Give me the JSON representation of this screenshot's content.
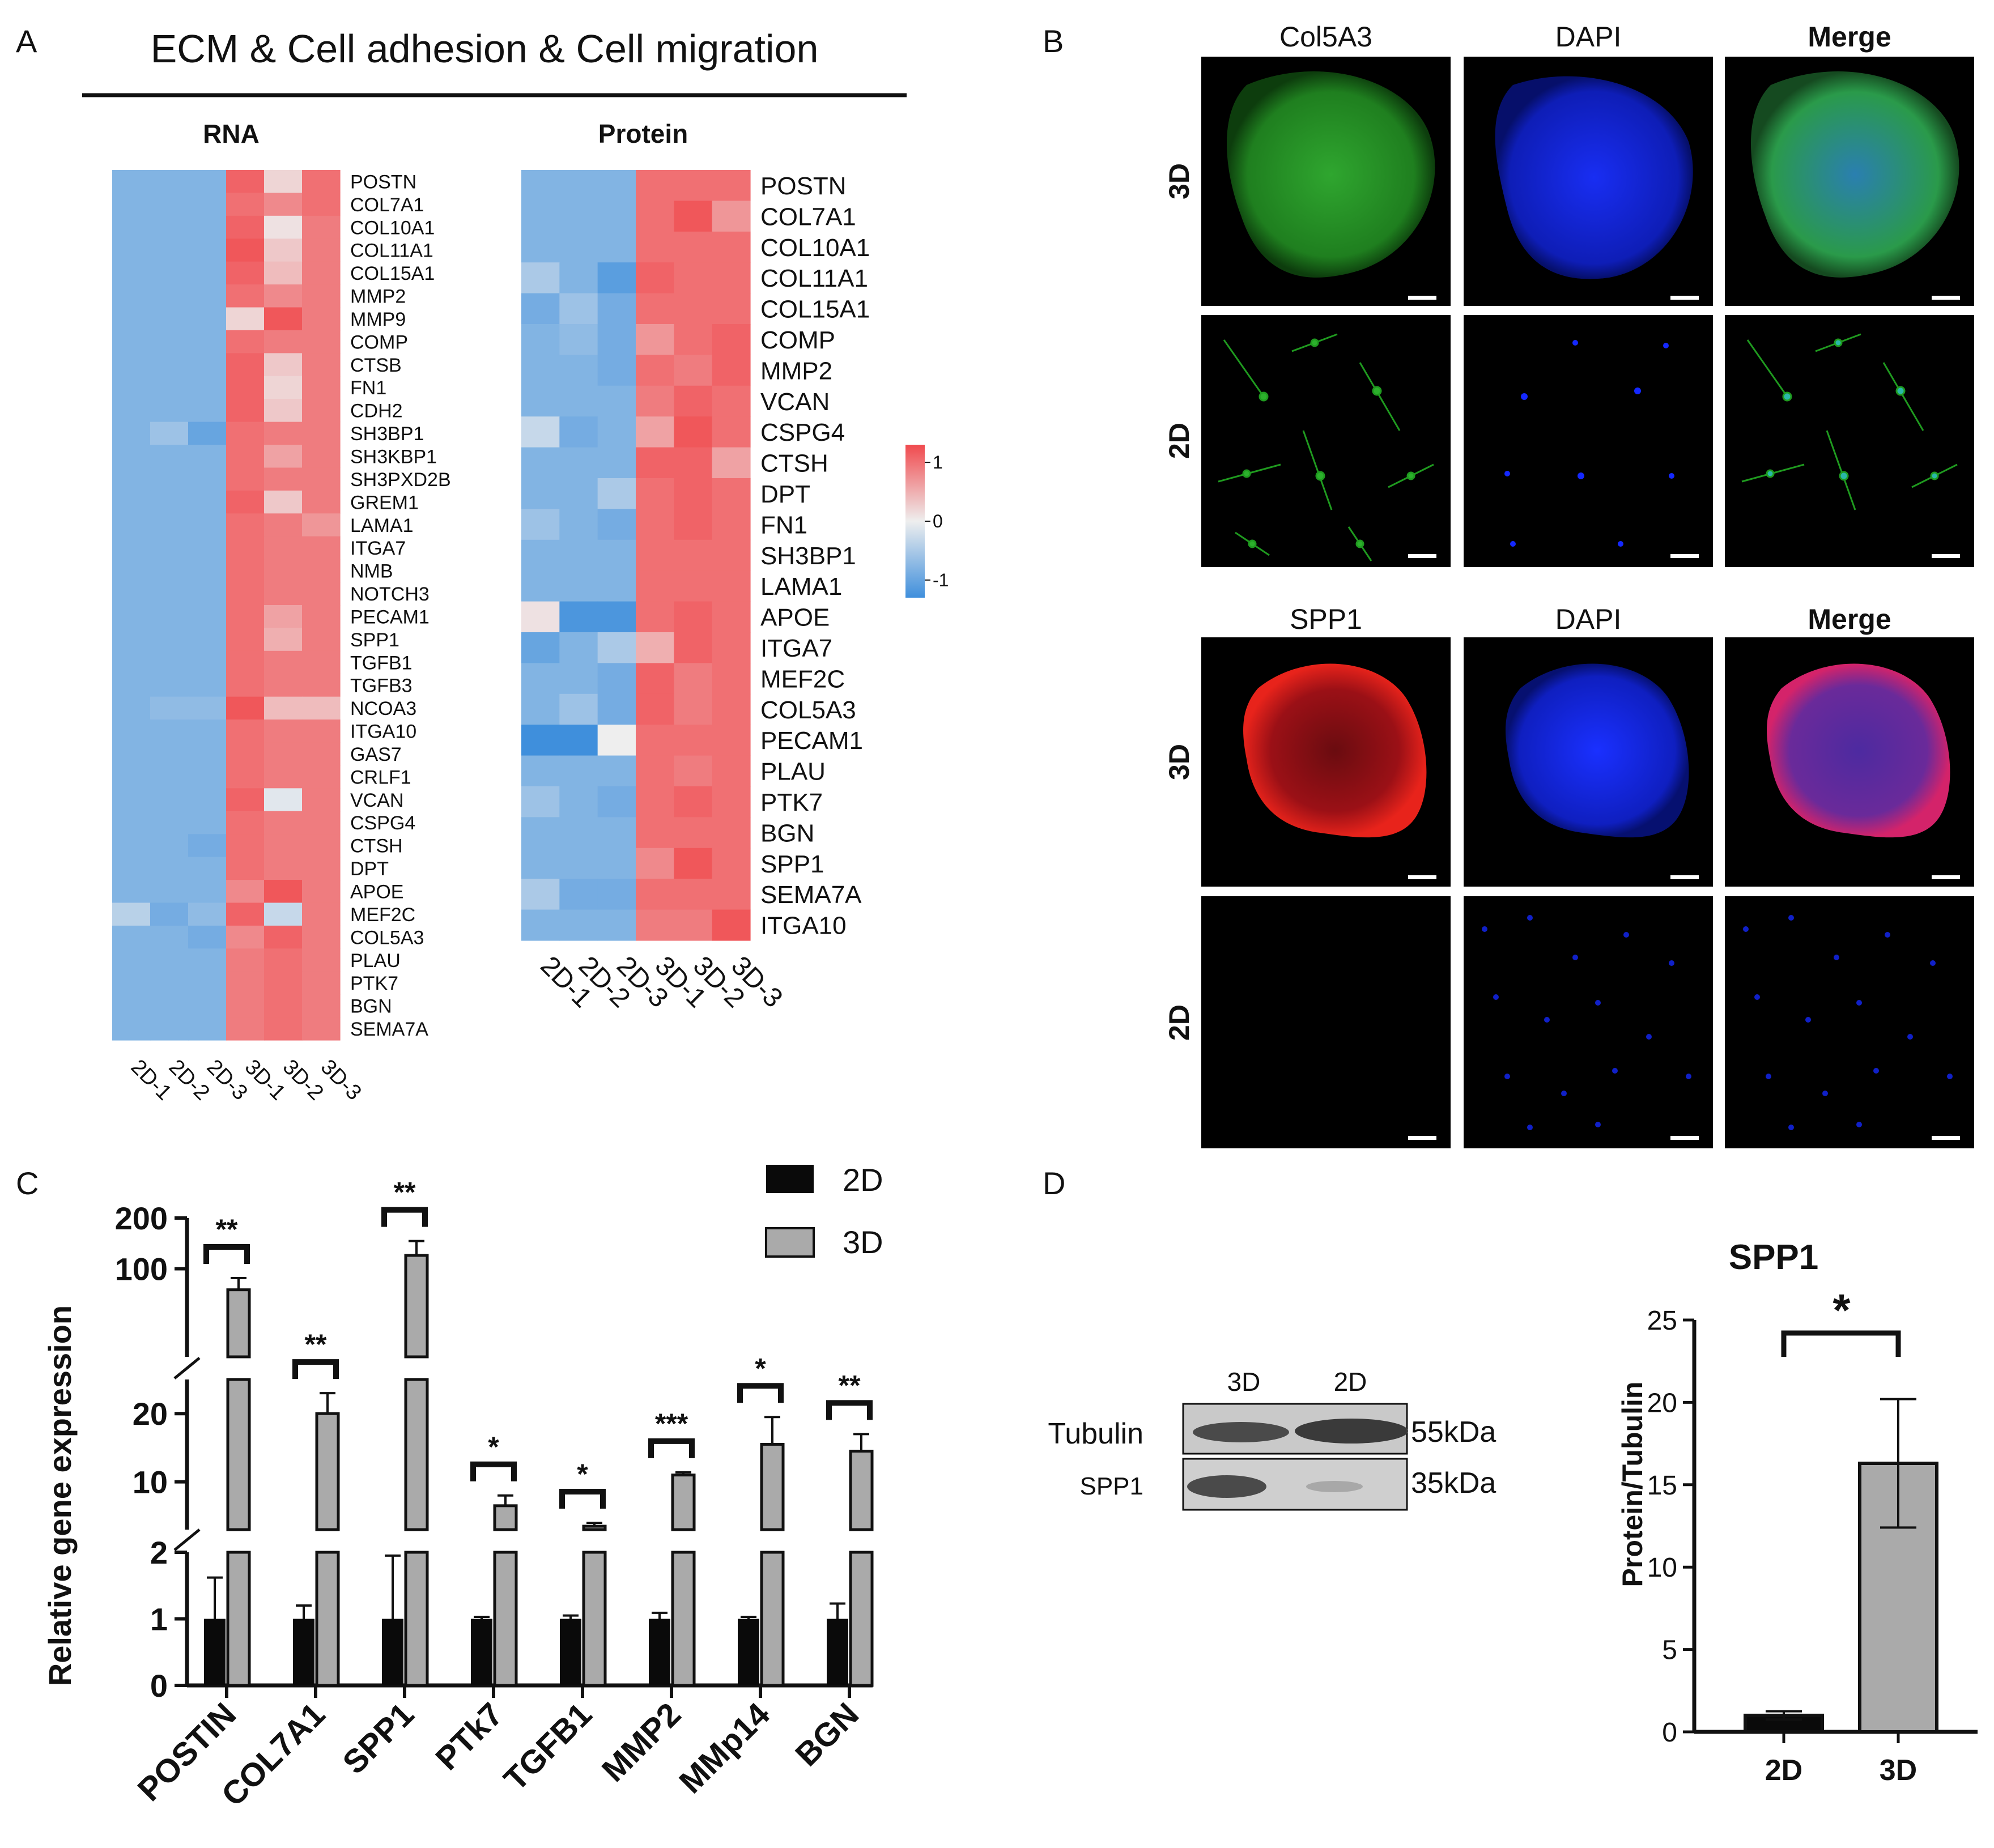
{
  "panel_labels": {
    "a": "A",
    "b": "B",
    "c": "C",
    "d": "D"
  },
  "colors": {
    "heat_low": "#3f8fdc",
    "heat_mid": "#eeeeee",
    "heat_high": "#f04a4e",
    "gene_highlight": "#e8231b",
    "bar_2d": "#0a0a0a",
    "bar_3d": "#aaaaaa",
    "green_channel": "#20a020",
    "blue_channel": "#1428ff",
    "red_channel": "#e8231b"
  },
  "panel_a": {
    "title": "ECM & Cell adhesion & Cell migration",
    "rna": {
      "title": "RNA",
      "columns": [
        "2D-1",
        "2D-2",
        "2D-3",
        "3D-1",
        "3D-2",
        "3D-3"
      ],
      "genes": [
        "POSTN",
        "COL7A1",
        "COL10A1",
        "COL11A1",
        "COL15A1",
        "MMP2",
        "MMP9",
        "COMP",
        "CTSB",
        "FN1",
        "CDH2",
        "SH3BP1",
        "SH3KBP1",
        "SH3PXD2B",
        "GREM1",
        "LAMA1",
        "ITGA7",
        "NMB",
        "NOTCH3",
        "PECAM1",
        "SPP1",
        "TGFB1",
        "TGFB3",
        "NCOA3",
        "ITGA10",
        "GAS7",
        "CRLF1",
        "VCAN",
        "CSPG4",
        "CTSH",
        "DPT",
        "APOE",
        "MEF2C",
        "COL5A3",
        "PLAU",
        "PTK7",
        "BGN",
        "SEMA7A"
      ],
      "highlighted": [
        "COL7A1",
        "MMP2",
        "SPP1"
      ],
      "values": [
        [
          -0.8,
          -0.8,
          -0.8,
          1.1,
          0.2,
          1.0
        ],
        [
          -0.8,
          -0.8,
          -0.8,
          1.0,
          0.8,
          1.0
        ],
        [
          -0.8,
          -0.8,
          -0.8,
          1.1,
          0.1,
          0.9
        ],
        [
          -0.8,
          -0.8,
          -0.8,
          1.2,
          0.3,
          0.9
        ],
        [
          -0.8,
          -0.8,
          -0.8,
          1.1,
          0.4,
          0.9
        ],
        [
          -0.8,
          -0.8,
          -0.8,
          1.0,
          0.8,
          0.9
        ],
        [
          -0.8,
          -0.8,
          -0.8,
          0.2,
          1.2,
          0.9
        ],
        [
          -0.8,
          -0.8,
          -0.8,
          1.0,
          0.9,
          0.9
        ],
        [
          -0.8,
          -0.8,
          -0.8,
          1.1,
          0.3,
          0.9
        ],
        [
          -0.8,
          -0.8,
          -0.8,
          1.1,
          0.2,
          0.9
        ],
        [
          -0.8,
          -0.8,
          -0.8,
          1.1,
          0.3,
          0.9
        ],
        [
          -0.8,
          -0.6,
          -1.0,
          1.0,
          0.9,
          0.9
        ],
        [
          -0.8,
          -0.8,
          -0.8,
          1.0,
          0.6,
          0.9
        ],
        [
          -0.8,
          -0.8,
          -0.8,
          1.0,
          0.9,
          0.9
        ],
        [
          -0.8,
          -0.8,
          -0.8,
          1.1,
          0.3,
          0.9
        ],
        [
          -0.8,
          -0.8,
          -0.8,
          1.0,
          0.9,
          0.7
        ],
        [
          -0.8,
          -0.8,
          -0.8,
          1.0,
          0.9,
          0.9
        ],
        [
          -0.8,
          -0.8,
          -0.8,
          1.0,
          0.9,
          0.9
        ],
        [
          -0.8,
          -0.8,
          -0.8,
          1.0,
          0.9,
          0.9
        ],
        [
          -0.8,
          -0.8,
          -0.8,
          1.0,
          0.6,
          0.9
        ],
        [
          -0.8,
          -0.8,
          -0.8,
          1.0,
          0.5,
          0.9
        ],
        [
          -0.8,
          -0.8,
          -0.8,
          1.0,
          0.9,
          0.9
        ],
        [
          -0.8,
          -0.8,
          -0.8,
          1.0,
          0.9,
          0.9
        ],
        [
          -0.8,
          -0.7,
          -0.7,
          1.2,
          0.4,
          0.4
        ],
        [
          -0.8,
          -0.8,
          -0.8,
          1.0,
          0.9,
          0.9
        ],
        [
          -0.8,
          -0.8,
          -0.8,
          1.0,
          0.9,
          0.9
        ],
        [
          -0.8,
          -0.8,
          -0.8,
          1.0,
          0.9,
          0.9
        ],
        [
          -0.8,
          -0.8,
          -0.8,
          1.1,
          -0.1,
          0.9
        ],
        [
          -0.8,
          -0.8,
          -0.8,
          1.0,
          0.9,
          0.9
        ],
        [
          -0.8,
          -0.8,
          -0.9,
          1.0,
          0.9,
          0.9
        ],
        [
          -0.8,
          -0.8,
          -0.8,
          1.0,
          0.9,
          0.9
        ],
        [
          -0.8,
          -0.8,
          -0.8,
          0.8,
          1.2,
          0.9
        ],
        [
          -0.4,
          -0.9,
          -0.7,
          1.1,
          -0.3,
          0.9
        ],
        [
          -0.8,
          -0.8,
          -0.9,
          0.8,
          1.1,
          0.9
        ],
        [
          -0.8,
          -0.8,
          -0.8,
          0.9,
          1.0,
          0.9
        ],
        [
          -0.8,
          -0.8,
          -0.8,
          0.9,
          1.0,
          0.9
        ],
        [
          -0.8,
          -0.8,
          -0.8,
          0.9,
          1.0,
          0.9
        ],
        [
          -0.8,
          -0.8,
          -0.8,
          0.9,
          1.0,
          0.9
        ]
      ]
    },
    "protein": {
      "title": "Protein",
      "columns": [
        "2D-1",
        "2D-2",
        "2D-3",
        "3D-1",
        "3D-2",
        "3D-3"
      ],
      "genes": [
        "POSTN",
        "COL7A1",
        "COL10A1",
        "COL11A1",
        "COL15A1",
        "COMP",
        "MMP2",
        "VCAN",
        "CSPG4",
        "CTSH",
        "DPT",
        "FN1",
        "SH3BP1",
        "LAMA1",
        "APOE",
        "ITGA7",
        "MEF2C",
        "COL5A3",
        "PECAM1",
        "PLAU",
        "PTK7",
        "BGN",
        "SPP1",
        "SEMA7A",
        "ITGA10"
      ],
      "highlighted": [
        "COL7A1",
        "MMP2",
        "COL5A3",
        "SPP1"
      ],
      "values": [
        [
          -0.8,
          -0.8,
          -0.8,
          1.0,
          1.0,
          1.0
        ],
        [
          -0.8,
          -0.8,
          -0.8,
          1.0,
          1.2,
          0.7
        ],
        [
          -0.8,
          -0.8,
          -0.8,
          1.0,
          1.0,
          1.0
        ],
        [
          -0.5,
          -0.8,
          -1.1,
          1.1,
          1.0,
          1.0
        ],
        [
          -0.9,
          -0.6,
          -0.9,
          1.0,
          1.0,
          1.0
        ],
        [
          -0.8,
          -0.7,
          -0.9,
          0.7,
          1.0,
          1.1
        ],
        [
          -0.8,
          -0.8,
          -0.9,
          1.0,
          0.9,
          1.1
        ],
        [
          -0.8,
          -0.8,
          -0.8,
          0.9,
          1.1,
          1.0
        ],
        [
          -0.3,
          -0.9,
          -0.8,
          0.6,
          1.2,
          1.0
        ],
        [
          -0.8,
          -0.8,
          -0.8,
          1.1,
          1.1,
          0.6
        ],
        [
          -0.8,
          -0.8,
          -0.5,
          1.0,
          1.1,
          1.0
        ],
        [
          -0.6,
          -0.8,
          -0.9,
          1.0,
          1.1,
          1.0
        ],
        [
          -0.8,
          -0.8,
          -0.8,
          1.0,
          1.0,
          1.0
        ],
        [
          -0.8,
          -0.8,
          -0.8,
          1.0,
          1.0,
          1.0
        ],
        [
          0.1,
          -1.2,
          -1.2,
          1.0,
          1.1,
          1.0
        ],
        [
          -1.0,
          -0.8,
          -0.5,
          0.5,
          1.1,
          1.0
        ],
        [
          -0.8,
          -0.8,
          -0.9,
          1.1,
          0.9,
          1.0
        ],
        [
          -0.8,
          -0.6,
          -0.9,
          1.1,
          0.9,
          1.0
        ],
        [
          -1.3,
          -1.3,
          0.0,
          1.0,
          1.0,
          1.0
        ],
        [
          -0.8,
          -0.8,
          -0.8,
          1.0,
          0.9,
          1.0
        ],
        [
          -0.6,
          -0.8,
          -0.9,
          1.0,
          1.1,
          1.0
        ],
        [
          -0.8,
          -0.8,
          -0.8,
          1.0,
          1.0,
          1.0
        ],
        [
          -0.8,
          -0.8,
          -0.8,
          0.8,
          1.2,
          1.0
        ],
        [
          -0.5,
          -0.9,
          -0.9,
          1.0,
          1.0,
          1.0
        ],
        [
          -0.8,
          -0.8,
          -0.8,
          0.9,
          0.9,
          1.2
        ]
      ]
    },
    "colorbar": {
      "ticks": [
        "1",
        "0",
        "-1"
      ],
      "min": -1.3,
      "max": 1.3
    }
  },
  "panel_b": {
    "row1_headers": [
      "Col5A3",
      "DAPI",
      "Merge"
    ],
    "row2_headers": [
      "SPP1",
      "DAPI",
      "Merge"
    ],
    "row_labels": [
      "3D",
      "2D",
      "3D",
      "2D"
    ]
  },
  "chart_data": [
    {
      "type": "bar",
      "ylabel": "Relative gene expression",
      "categories": [
        "POSTIN",
        "COL7A1",
        "SPP1",
        "PTk7",
        "TGFB1",
        "MMP2",
        "MMp14",
        "BGN"
      ],
      "series": [
        {
          "name": "2D",
          "values": [
            1,
            1,
            1,
            1,
            1,
            1,
            1,
            1
          ],
          "errors": [
            0.62,
            0.2,
            0.95,
            0.03,
            0.05,
            0.09,
            0.03,
            0.23
          ]
        },
        {
          "name": "3D",
          "values": [
            75,
            20,
            120,
            6.5,
            3.5,
            11,
            15.5,
            14.5
          ],
          "errors": [
            13,
            3,
            26,
            1.5,
            0.5,
            0.4,
            4,
            2.5
          ]
        }
      ],
      "significance": [
        "**",
        "**",
        "**",
        "*",
        "*",
        "***",
        "*",
        "**"
      ],
      "yticks": [
        "0",
        "1",
        "2",
        "10",
        "20",
        "100",
        "200"
      ],
      "axis_segments": [
        [
          0,
          2
        ],
        [
          3,
          25
        ],
        [
          30,
          200
        ]
      ],
      "legend": "top-right"
    },
    {
      "type": "bar",
      "title": "SPP1",
      "ylabel": "Protein/Tubulin",
      "categories": [
        "2D",
        "3D"
      ],
      "values": [
        1.0,
        16.3
      ],
      "errors": [
        0.25,
        3.9
      ],
      "ylim": [
        0,
        25
      ],
      "yticks": [
        "0",
        "5",
        "10",
        "15",
        "20",
        "25"
      ],
      "significance": "*"
    }
  ],
  "panel_d_blot": {
    "lanes": [
      "3D",
      "2D"
    ],
    "rows": [
      "Tubulin",
      "SPP1"
    ],
    "sizes": [
      "55kDa",
      "35kDa"
    ]
  }
}
